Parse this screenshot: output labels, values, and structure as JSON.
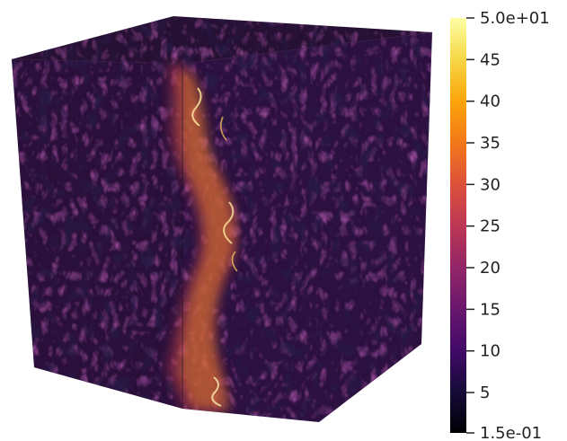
{
  "render": {
    "subject": "turbulence-volume-cube",
    "colormap": "inferno",
    "colors": {
      "background": "#ffffff",
      "tick": "#222222"
    }
  },
  "colorbar": {
    "min": 0.15,
    "max": 50,
    "top_label": "5.0e+01",
    "bottom_label": "1.5e-01",
    "ticks": [
      {
        "value": 45,
        "label": "45"
      },
      {
        "value": 40,
        "label": "40"
      },
      {
        "value": 35,
        "label": "35"
      },
      {
        "value": 30,
        "label": "30"
      },
      {
        "value": 25,
        "label": "25"
      },
      {
        "value": 20,
        "label": "20"
      },
      {
        "value": 15,
        "label": "15"
      },
      {
        "value": 10,
        "label": "10"
      },
      {
        "value": 5,
        "label": "5"
      }
    ]
  }
}
